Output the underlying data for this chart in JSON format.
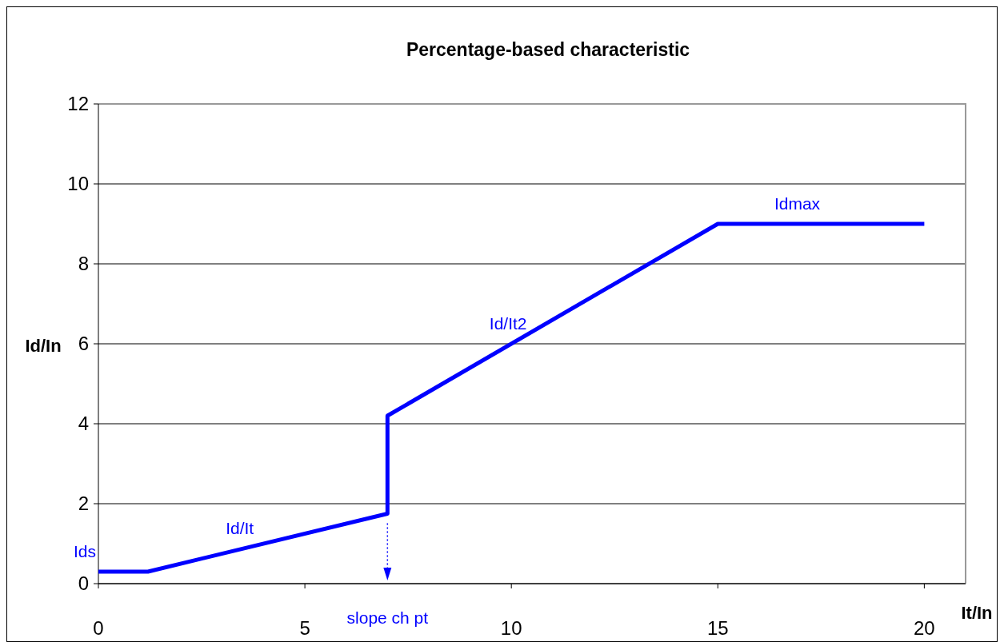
{
  "chart_data": {
    "type": "line",
    "title": "Percentage-based characteristic",
    "xlabel": "It/In",
    "ylabel": "Id/In",
    "x": [
      0,
      1.2,
      7,
      7,
      15,
      20
    ],
    "series": [
      {
        "color": "#0000ff",
        "values": [
          0.3,
          0.3,
          1.75,
          4.2,
          9,
          9
        ]
      }
    ],
    "xlim": [
      0,
      21
    ],
    "xticks": [
      0,
      5,
      10,
      15,
      20
    ],
    "ylim": [
      0,
      12
    ],
    "yticks": [
      0,
      2,
      4,
      6,
      8,
      10,
      12
    ],
    "grid": "y",
    "marker": "none",
    "line_style": "solid",
    "annotations": [
      {
        "text": "Ids",
        "x": 0,
        "y": 0.3
      },
      {
        "text": "Id/It",
        "x": 3.5,
        "y": 0.875
      },
      {
        "text": "Id/It2",
        "x": 10,
        "y": 6
      },
      {
        "text": "Idmax",
        "x": 17,
        "y": 9
      },
      "slope ch pt"
    ]
  }
}
